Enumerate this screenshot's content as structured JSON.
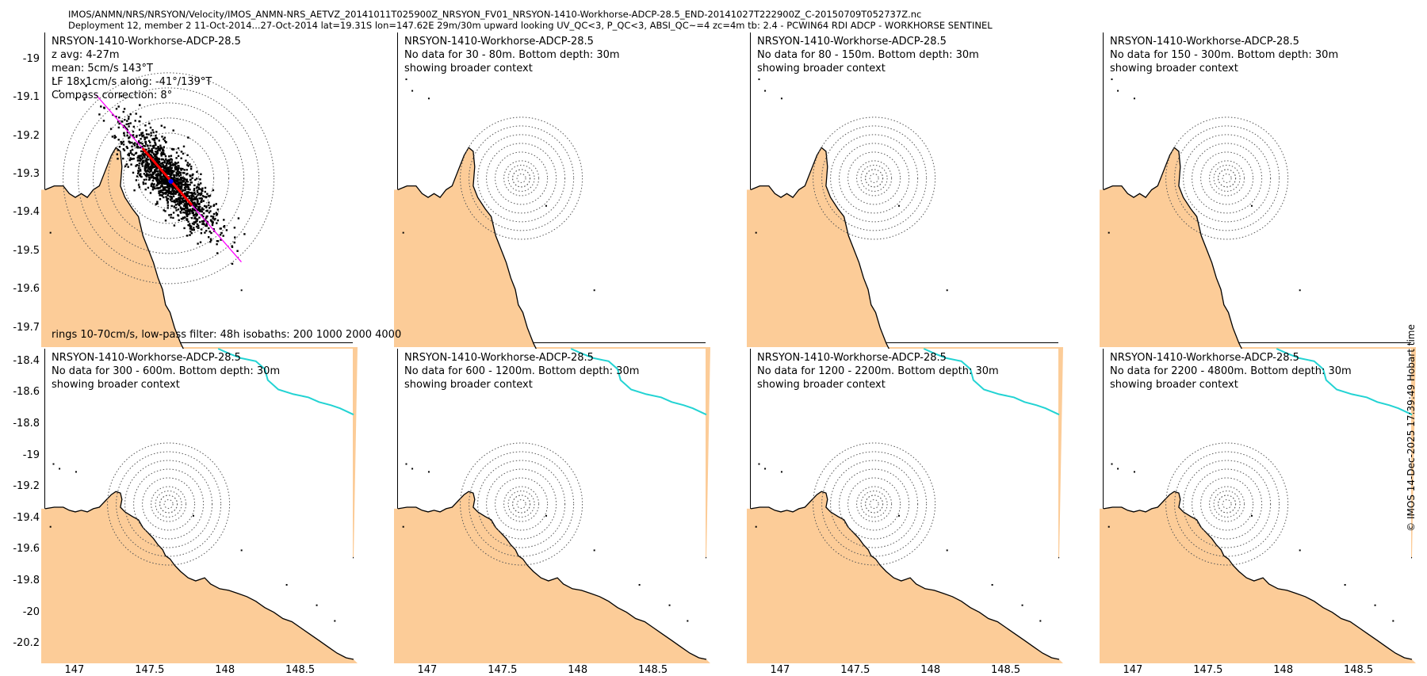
{
  "header": {
    "line1": "IMOS/ANMN/NRS/NRSYON/Velocity/IMOS_ANMN-NRS_AETVZ_20141011T025900Z_NRSYON_FV01_NRSYON-1410-Workhorse-ADCP-28.5_END-20141027T222900Z_C-20150709T052737Z.nc",
    "line2": "Deployment 12, member 2 11-Oct-2014...27-Oct-2014 lat=19.31S lon=147.62E 29m/30m upward looking UV_QC<3, P_QC<3, ABSI_QC~=4 zc=4m tb: 2.4 - PCWIN64 RDI ADCP - WORKHORSE SENTINEL"
  },
  "credit": "© IMOS 14-Dec-2025 17:39:49 Hobart time",
  "colors": {
    "land": "#fccc98",
    "coastline": "#000000",
    "reef": "#22d3d3",
    "rings": "#555555",
    "scatter": "#000000",
    "major_axis": "#ff00ff",
    "lowpass": "#ff0000",
    "mean": "#0000ff"
  },
  "icons": [
    "rotated-credit-text"
  ],
  "axes": {
    "x_ticks": [
      "147",
      "147.5",
      "148",
      "148.5"
    ],
    "x_tick_values": [
      147,
      147.5,
      148,
      148.5
    ],
    "row1": {
      "y_ticks": [
        "-19",
        "-19.1",
        "-19.2",
        "-19.3",
        "-19.4",
        "-19.5",
        "-19.6",
        "-19.7"
      ],
      "y_tick_values": [
        -19,
        -19.1,
        -19.2,
        -19.3,
        -19.4,
        -19.5,
        -19.6,
        -19.7
      ],
      "x_range": [
        146.8,
        148.85
      ],
      "y_range": [
        -19.74,
        -18.93
      ]
    },
    "row2": {
      "y_ticks": [
        "-18.4",
        "-18.6",
        "-18.8",
        "-19",
        "-19.2",
        "-19.4",
        "-19.6",
        "-19.8",
        "-20",
        "-20.2"
      ],
      "y_tick_values": [
        -18.4,
        -18.6,
        -18.8,
        -19,
        -19.2,
        -19.4,
        -19.6,
        -19.8,
        -20,
        -20.2
      ],
      "x_range": [
        146.8,
        148.85
      ],
      "y_range": [
        -20.3,
        -18.32
      ]
    }
  },
  "mooring": {
    "lon": 147.62,
    "lat": -19.31
  },
  "panels": [
    {
      "title": "NRSYON-1410-Workhorse-ADCP-28.5",
      "lines": [
        "z avg: 4-27m",
        "mean: 5cm/s 143°T",
        "LF 18x1cm/s along: -41°/139°T",
        "Compass correction: 8°"
      ],
      "footer": "rings 10-70cm/s, low-pass filter: 48h isobaths: 200 1000 2000 4000",
      "has_data": true
    },
    {
      "title": "NRSYON-1410-Workhorse-ADCP-28.5",
      "lines": [
        "No data for 30 - 80m. Bottom depth: 30m",
        "showing broader context"
      ],
      "has_data": false
    },
    {
      "title": "NRSYON-1410-Workhorse-ADCP-28.5",
      "lines": [
        "No data for 80 - 150m. Bottom depth: 30m",
        "showing broader context"
      ],
      "has_data": false
    },
    {
      "title": "NRSYON-1410-Workhorse-ADCP-28.5",
      "lines": [
        "No data for 150 - 300m. Bottom depth: 30m",
        "showing broader context"
      ],
      "has_data": false
    },
    {
      "title": "NRSYON-1410-Workhorse-ADCP-28.5",
      "lines": [
        "No data for 300 - 600m. Bottom depth: 30m",
        "showing broader context"
      ],
      "has_data": false
    },
    {
      "title": "NRSYON-1410-Workhorse-ADCP-28.5",
      "lines": [
        "No data for 600 - 1200m. Bottom depth: 30m",
        "showing broader context"
      ],
      "has_data": false
    },
    {
      "title": "NRSYON-1410-Workhorse-ADCP-28.5",
      "lines": [
        "No data for 1200 - 2200m. Bottom depth: 30m",
        "showing broader context"
      ],
      "has_data": false
    },
    {
      "title": "NRSYON-1410-Workhorse-ADCP-28.5",
      "lines": [
        "No data for 2200 - 4800m. Bottom depth: 30m",
        "showing broader context"
      ],
      "has_data": false
    }
  ],
  "rings_cm_s": [
    10,
    20,
    30,
    40,
    50,
    60,
    70
  ],
  "major_axis_deg_true": 139,
  "mean_vector": {
    "speed_cm_s": 5,
    "direction_deg_true": 143
  }
}
